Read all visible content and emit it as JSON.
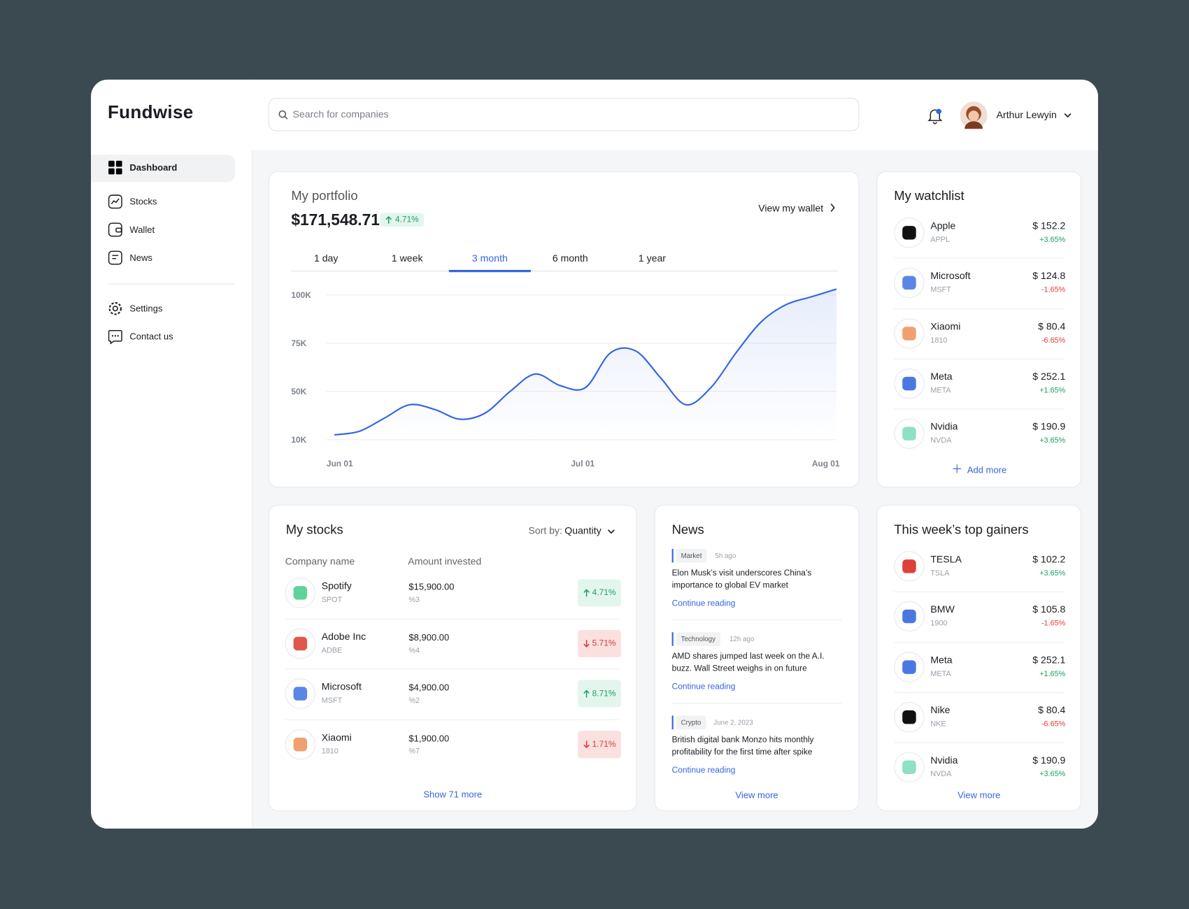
{
  "brand": "Fundwise",
  "nav": [
    "Dashboard",
    "Stocks",
    "Wallet",
    "News"
  ],
  "nav_secondary": [
    "Settings",
    "Contact us"
  ],
  "search_placeholder": "Search for companies",
  "user": "Arthur Lewyin",
  "portfolio": {
    "title": "My portfolio",
    "total": "$171,548.71",
    "change": "4.71%",
    "wallet_link": "View my wallet",
    "ranges": [
      "1 day",
      "1 week",
      "3 month",
      "6 month",
      "1 year"
    ],
    "active_range": 2,
    "chart": {
      "type": "line",
      "color": "#3466e0",
      "grid": true,
      "x_labels": [
        "Jun 01",
        "Jul 01",
        "Aug 01"
      ],
      "yticks": [
        {
          "value": 10000,
          "label": "10K"
        },
        {
          "value": 50000,
          "label": "50K"
        },
        {
          "value": 75000,
          "label": "75K"
        },
        {
          "value": 100000,
          "label": "100K"
        }
      ],
      "values": [
        14000,
        17000,
        28000,
        39000,
        35000,
        27000,
        32000,
        50000,
        59000,
        53000,
        52000,
        70000,
        71000,
        57000,
        39000,
        52000,
        70000,
        86000,
        95000,
        99000,
        103000
      ]
    }
  },
  "watchlist": {
    "title": "My watchlist",
    "add": "Add more",
    "items": [
      {
        "name": "Apple",
        "ticker": "APPL",
        "price": "$ 152.2",
        "change": "+3.65%",
        "color": "#111111"
      },
      {
        "name": "Microsoft",
        "ticker": "MSFT",
        "price": "$ 124.8",
        "change": "-1.65%",
        "color": "#5b86e5"
      },
      {
        "name": "Xiaomi",
        "ticker": "1810",
        "price": "$ 80.4",
        "change": "-6.65%",
        "color": "#f0a070"
      },
      {
        "name": "Meta",
        "ticker": "META",
        "price": "$ 252.1",
        "change": "+1.65%",
        "color": "#4a78e0"
      },
      {
        "name": "Nvidia",
        "ticker": "NVDA",
        "price": "$ 190.9",
        "change": "+3.65%",
        "color": "#8fe0c4"
      }
    ]
  },
  "stocks": {
    "title": "My stocks",
    "sort_label": "Sort by:",
    "sort_value": "Quantity",
    "columns": [
      "Company name",
      "Amount invested"
    ],
    "more": "Show 71 more",
    "rows": [
      {
        "name": "Spotify",
        "ticker": "SPOT",
        "amount": "$15,900.00",
        "share": "%3",
        "change": "4.71%",
        "direction": "up",
        "color": "#5fd39a"
      },
      {
        "name": "Adobe Inc",
        "ticker": "ADBE",
        "amount": "$8,900.00",
        "share": "%4",
        "change": "5.71%",
        "direction": "down",
        "color": "#e0584c"
      },
      {
        "name": "Microsoft",
        "ticker": "MSFT",
        "amount": "$4,900.00",
        "share": "%2",
        "change": "8.71%",
        "direction": "up",
        "color": "#5b86e5"
      },
      {
        "name": "Xiaomi",
        "ticker": "1810",
        "amount": "$1,900.00",
        "share": "%7",
        "change": "1.71%",
        "direction": "down",
        "color": "#f0a070"
      }
    ]
  },
  "news": {
    "title": "News",
    "more": "View more",
    "items": [
      {
        "tag": "Market",
        "time": "5h ago",
        "headline": [
          "Elon Musk’s visit underscores China’s",
          "importance to global EV market"
        ],
        "link": "Continue reading"
      },
      {
        "tag": "Technology",
        "time": "12h ago",
        "headline": [
          "AMD shares jumped last week on the A.I.",
          "buzz. Wall Street weighs in on future"
        ],
        "link": "Continue reading"
      },
      {
        "tag": "Crypto",
        "time": "June 2, 2023",
        "headline": [
          "British digital bank Monzo hits monthly",
          "profitability for the first time after spike"
        ],
        "link": "Continue reading"
      }
    ]
  },
  "gainers": {
    "title": "This week’s top gainers",
    "more": "View more",
    "items": [
      {
        "name": "TESLA",
        "ticker": "TSLA",
        "price": "$ 102.2",
        "change": "+3.65%",
        "color": "#e0403a"
      },
      {
        "name": "BMW",
        "ticker": "1900",
        "price": "$ 105.8",
        "change": "-1.65%",
        "color": "#4a78e0"
      },
      {
        "name": "Meta",
        "ticker": "META",
        "price": "$ 252.1",
        "change": "+1.65%",
        "color": "#4a78e0"
      },
      {
        "name": "Nike",
        "ticker": "NKE",
        "price": "$ 80.4",
        "change": "-6.65%",
        "color": "#111111"
      },
      {
        "name": "Nvidia",
        "ticker": "NVDA",
        "price": "$ 190.9",
        "change": "+3.65%",
        "color": "#8fe0c4"
      }
    ]
  }
}
